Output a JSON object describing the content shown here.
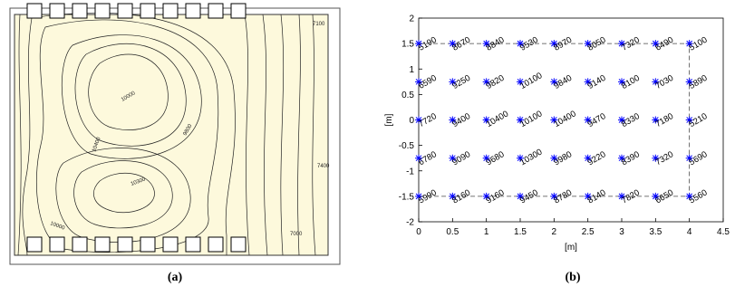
{
  "chart_data": [
    {
      "type": "contour",
      "caption": "(a)",
      "annotations": [
        "10400",
        "10000",
        "10300",
        "9800",
        "7400",
        "7100",
        "7000",
        "10000"
      ]
    },
    {
      "type": "scatter",
      "caption": "(b)",
      "xlabel": "[m]",
      "ylabel": "[m]",
      "xlim": [
        0,
        4.5
      ],
      "ylim": [
        -2,
        2
      ],
      "xticks": [
        0,
        0.5,
        1,
        1.5,
        2,
        2.5,
        3,
        3.5,
        4,
        4.5
      ],
      "yticks": [
        -2,
        -1.5,
        -1,
        -0.5,
        0,
        0.5,
        1,
        1.5,
        2
      ],
      "color": "#0000ff",
      "x": [
        0,
        0.5,
        1,
        1.5,
        2,
        2.5,
        3,
        3.5,
        4,
        0,
        0.5,
        1,
        1.5,
        2,
        2.5,
        3,
        3.5,
        4,
        0,
        0.5,
        1,
        1.5,
        2,
        2.5,
        3,
        3.5,
        4,
        0,
        0.5,
        1,
        1.5,
        2,
        2.5,
        3,
        3.5,
        4,
        0,
        0.5,
        1,
        1.5,
        2,
        2.5,
        3,
        3.5,
        4
      ],
      "y": [
        1.5,
        1.5,
        1.5,
        1.5,
        1.5,
        1.5,
        1.5,
        1.5,
        1.5,
        0.75,
        0.75,
        0.75,
        0.75,
        0.75,
        0.75,
        0.75,
        0.75,
        0.75,
        0,
        0,
        0,
        0,
        0,
        0,
        0,
        0,
        0,
        -0.75,
        -0.75,
        -0.75,
        -0.75,
        -0.75,
        -0.75,
        -0.75,
        -0.75,
        -0.75,
        -1.5,
        -1.5,
        -1.5,
        -1.5,
        -1.5,
        -1.5,
        -1.5,
        -1.5,
        -1.5
      ],
      "values": [
        5190,
        8670,
        8840,
        9530,
        8970,
        8050,
        7320,
        6490,
        5100,
        6590,
        9250,
        9820,
        10100,
        9840,
        9140,
        8100,
        7030,
        5890,
        7720,
        9400,
        10400,
        10100,
        10400,
        9470,
        8330,
        7180,
        5210,
        6780,
        9090,
        9680,
        10300,
        9980,
        9220,
        8390,
        7320,
        5690,
        5990,
        8160,
        9160,
        9450,
        8780,
        8140,
        7820,
        6650,
        5560
      ]
    }
  ]
}
